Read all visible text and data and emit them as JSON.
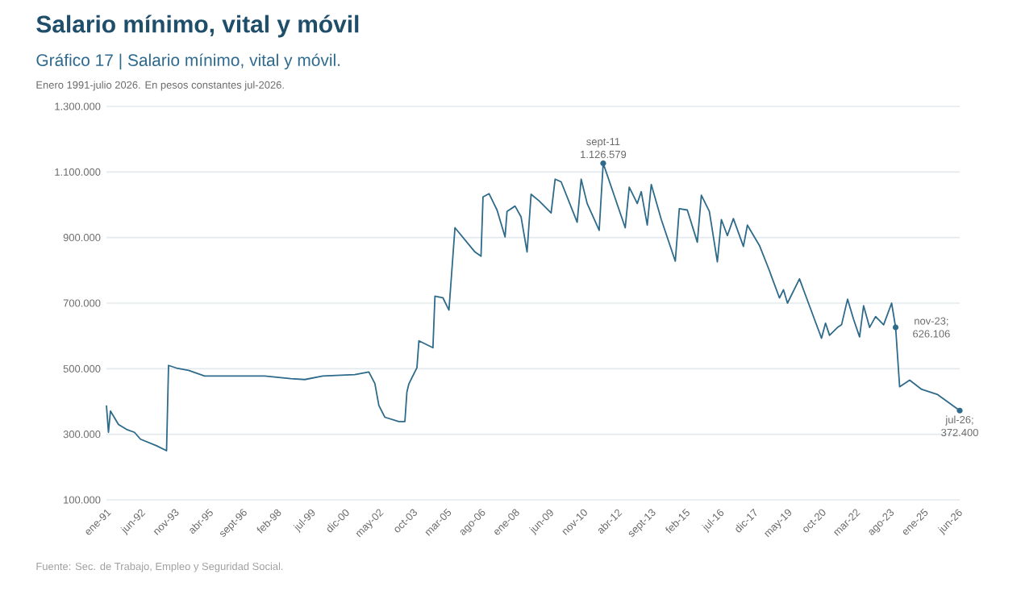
{
  "chart_data": {
    "type": "line",
    "title": "Salario mínimo, vital y móvil",
    "subtitle": "Gráfico 17 | Salario mínimo, vital y móvil.",
    "annotations": [
      "Enero 1991-julio 2026. En pesos constantes jul-2026.",
      {
        "text": "sept-11 1.126.579",
        "x": "2011-09",
        "y": 1126579
      },
      {
        "text": "nov-23; 626.106",
        "x": "2023-11",
        "y": 626106
      },
      {
        "text": "jul-26; 372.400",
        "x": "2026-07",
        "y": 372400
      },
      "Fuente: Sec. de Trabajo, Empleo y Seguridad Social."
    ],
    "x": [
      "1991-01",
      "1991-02",
      "1991-03",
      "1991-07",
      "1991-11",
      "1992-03",
      "1992-06",
      "1993-02",
      "1993-07",
      "1993-08",
      "1993-12",
      "1994-06",
      "1995-02",
      "1997-08",
      "1998-09",
      "1999-04",
      "2000-01",
      "2001-05",
      "2001-12",
      "2002-03",
      "2002-05",
      "2002-08",
      "2003-03",
      "2003-06",
      "2003-07",
      "2003-08",
      "2003-12",
      "2004-01",
      "2004-08",
      "2004-09",
      "2005-01",
      "2005-04",
      "2005-07",
      "2006-05",
      "2006-08",
      "2006-09",
      "2006-12",
      "2007-04",
      "2007-08",
      "2007-09",
      "2008-01",
      "2008-04",
      "2008-07",
      "2008-09",
      "2009-01",
      "2009-07",
      "2009-09",
      "2009-12",
      "2010-08",
      "2010-10",
      "2011-01",
      "2011-07",
      "2011-09",
      "2012-08",
      "2012-10",
      "2013-02",
      "2013-04",
      "2013-07",
      "2013-09",
      "2014-02",
      "2014-09",
      "2014-11",
      "2015-03",
      "2015-08",
      "2015-10",
      "2016-02",
      "2016-06",
      "2016-08",
      "2016-11",
      "2017-02",
      "2017-07",
      "2017-09",
      "2018-03",
      "2018-08",
      "2018-09",
      "2019-01",
      "2019-03",
      "2019-05",
      "2019-11",
      "2020-03",
      "2020-10",
      "2020-12",
      "2021-02",
      "2021-06",
      "2021-08",
      "2021-11",
      "2022-02",
      "2022-05",
      "2022-07",
      "2022-10",
      "2023-01",
      "2023-05",
      "2023-09",
      "2023-11",
      "2024-01",
      "2024-06",
      "2024-12",
      "2025-08",
      "2026-07"
    ],
    "series": [
      {
        "color": "#2e6a8a",
        "values": [
          388000,
          306000,
          371000,
          330000,
          315000,
          306000,
          285000,
          265000,
          250000,
          510000,
          502000,
          495000,
          478000,
          478000,
          470000,
          467000,
          478000,
          482000,
          490000,
          455000,
          388000,
          352000,
          339000,
          339000,
          429000,
          454000,
          503000,
          585000,
          564000,
          721000,
          716000,
          679000,
          930000,
          856000,
          843000,
          1024000,
          1034000,
          984000,
          902000,
          980000,
          996000,
          963000,
          856000,
          1032000,
          1012000,
          975000,
          1078000,
          1070000,
          947000,
          1078000,
          1004000,
          922000,
          1126579,
          930000,
          1054000,
          1004000,
          1040000,
          938000,
          1062000,
          955000,
          828000,
          988000,
          984000,
          886000,
          1029000,
          980000,
          826000,
          955000,
          906000,
          958000,
          873000,
          938000,
          876000,
          799000,
          782000,
          716000,
          741000,
          700000,
          774000,
          708000,
          593000,
          639000,
          602000,
          626000,
          634000,
          712000,
          651000,
          597000,
          692000,
          626000,
          659000,
          634000,
          700000,
          626106,
          445000,
          465000,
          437000,
          421000,
          372400
        ]
      }
    ],
    "xlim": [
      "1991-01",
      "2026-07"
    ],
    "xticks": [
      {
        "value": "1991-01",
        "label": "ene-91"
      },
      {
        "value": "1992-06",
        "label": "jun-92"
      },
      {
        "value": "1993-11",
        "label": "nov-93"
      },
      {
        "value": "1995-04",
        "label": "abr-95"
      },
      {
        "value": "1996-09",
        "label": "sept-96"
      },
      {
        "value": "1998-02",
        "label": "feb-98"
      },
      {
        "value": "1999-07",
        "label": "jul-99"
      },
      {
        "value": "2000-12",
        "label": "dic-00"
      },
      {
        "value": "2002-05",
        "label": "may-02"
      },
      {
        "value": "2003-10",
        "label": "oct-03"
      },
      {
        "value": "2005-03",
        "label": "mar-05"
      },
      {
        "value": "2006-08",
        "label": "ago-06"
      },
      {
        "value": "2008-01",
        "label": "ene-08"
      },
      {
        "value": "2009-06",
        "label": "jun-09"
      },
      {
        "value": "2010-11",
        "label": "nov-10"
      },
      {
        "value": "2012-04",
        "label": "abr-12"
      },
      {
        "value": "2013-09",
        "label": "sept-13"
      },
      {
        "value": "2015-02",
        "label": "feb-15"
      },
      {
        "value": "2016-07",
        "label": "jul-16"
      },
      {
        "value": "2017-12",
        "label": "dic-17"
      },
      {
        "value": "2019-05",
        "label": "may-19"
      },
      {
        "value": "2020-10",
        "label": "oct-20"
      },
      {
        "value": "2022-03",
        "label": "mar-22"
      },
      {
        "value": "2023-08",
        "label": "ago-23"
      },
      {
        "value": "2025-01",
        "label": "ene-25"
      },
      {
        "value": "2026-06",
        "label": "jun-26"
      }
    ],
    "ylim": [
      100000,
      1300000
    ],
    "yticks": [
      {
        "value": 100000,
        "label": "100.000"
      },
      {
        "value": 300000,
        "label": "300.000"
      },
      {
        "value": 500000,
        "label": "500.000"
      },
      {
        "value": 700000,
        "label": "700.000"
      },
      {
        "value": 900000,
        "label": "900.000"
      },
      {
        "value": 1100000,
        "label": "1.100.000"
      },
      {
        "value": 1300000,
        "label": "1.300.000"
      }
    ],
    "grid": "y"
  }
}
